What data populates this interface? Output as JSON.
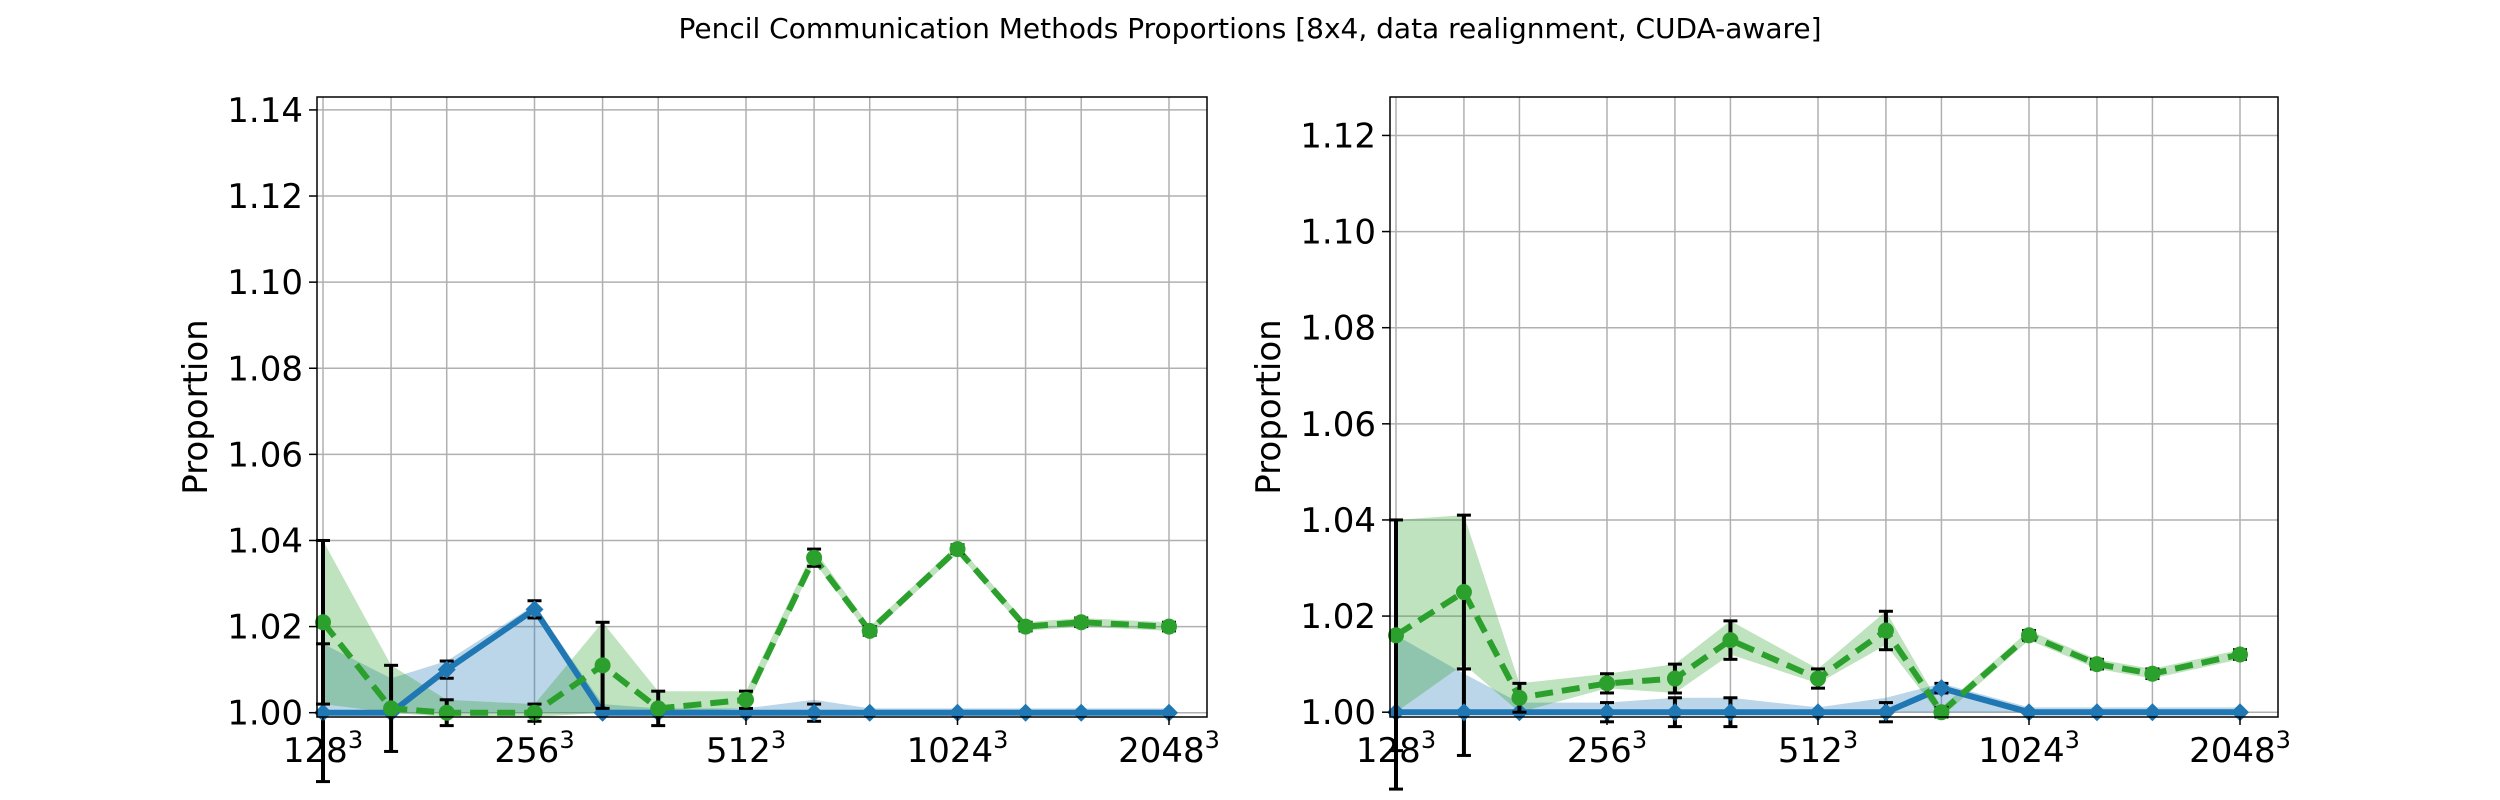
{
  "title": "Pencil Communication Methods Proportions [8x4, data realignment, CUDA-aware]",
  "colors": {
    "blue": "#1f77b4",
    "green": "#2ca02c",
    "grid": "#b0b0b0",
    "errbar": "#000000"
  },
  "chart_data": [
    {
      "type": "line",
      "ylabel": "Proportion",
      "grid": true,
      "ylim": [
        0.999,
        1.143
      ],
      "yticks": [
        "1.00",
        "1.02",
        "1.04",
        "1.06",
        "1.08",
        "1.10",
        "1.12",
        "1.14"
      ],
      "x": [
        128,
        160,
        192,
        256,
        320,
        384,
        512,
        640,
        768,
        1024,
        1280,
        1536,
        2048
      ],
      "xticks": [
        {
          "base": "128",
          "exp": "3"
        },
        {
          "base": "256",
          "exp": "3"
        },
        {
          "base": "512",
          "exp": "3"
        },
        {
          "base": "1024",
          "exp": "3"
        },
        {
          "base": "2048",
          "exp": "3"
        }
      ],
      "series": [
        {
          "color": "blue",
          "style": "solid",
          "marker": "diamond",
          "values": [
            1.0,
            1.0,
            1.01,
            1.024,
            1.0,
            1.0,
            1.0,
            1.0,
            1.0,
            1.0,
            1.0,
            1.0,
            1.0
          ],
          "lower": [
            1.0,
            1.0,
            1.0,
            1.0,
            1.0,
            1.0,
            1.0,
            1.0,
            1.0,
            1.0,
            1.0,
            1.0,
            1.0
          ],
          "upper": [
            1.016,
            1.008,
            1.012,
            1.025,
            1.002,
            1.001,
            1.001,
            1.003,
            1.001,
            1.001,
            1.001,
            1.001,
            1.001
          ],
          "err": [
            0.016,
            0.0,
            0.002,
            0.002,
            0.0,
            0.0,
            0.0,
            0.002,
            0.0,
            0.0,
            0.0,
            0.0,
            0.0
          ]
        },
        {
          "color": "green",
          "style": "dashed",
          "marker": "circle",
          "values": [
            1.021,
            1.001,
            1.0,
            1.0,
            1.011,
            1.001,
            1.003,
            1.036,
            1.019,
            1.038,
            1.02,
            1.021,
            1.02
          ],
          "lower": [
            1.002,
            1.0,
            0.999,
            0.999,
            1.0,
            1.0,
            1.001,
            1.035,
            1.018,
            1.037,
            1.019,
            1.02,
            1.019
          ],
          "upper": [
            1.04,
            1.011,
            1.003,
            1.002,
            1.021,
            1.005,
            1.005,
            1.038,
            1.02,
            1.039,
            1.021,
            1.022,
            1.021
          ],
          "err": [
            0.019,
            0.01,
            0.003,
            0.002,
            0.01,
            0.004,
            0.002,
            0.002,
            0.001,
            0.001,
            0.001,
            0.001,
            0.001
          ]
        }
      ]
    },
    {
      "type": "line",
      "ylabel": "Proportion",
      "grid": true,
      "ylim": [
        0.999,
        1.128
      ],
      "yticks": [
        "1.00",
        "1.02",
        "1.04",
        "1.06",
        "1.08",
        "1.10",
        "1.12"
      ],
      "x": [
        128,
        160,
        192,
        256,
        320,
        384,
        512,
        640,
        768,
        1024,
        1280,
        1536,
        2048
      ],
      "xticks": [
        {
          "base": "128",
          "exp": "3"
        },
        {
          "base": "256",
          "exp": "3"
        },
        {
          "base": "512",
          "exp": "3"
        },
        {
          "base": "1024",
          "exp": "3"
        },
        {
          "base": "2048",
          "exp": "3"
        }
      ],
      "series": [
        {
          "color": "blue",
          "style": "solid",
          "marker": "diamond",
          "values": [
            1.0,
            1.0,
            1.0,
            1.0,
            1.0,
            1.0,
            1.0,
            1.0,
            1.005,
            1.0,
            1.0,
            1.0,
            1.0
          ],
          "lower": [
            1.0,
            1.0,
            1.0,
            1.0,
            1.0,
            1.0,
            1.0,
            1.0,
            1.0,
            1.0,
            1.0,
            1.0,
            1.0
          ],
          "upper": [
            1.016,
            1.008,
            1.002,
            1.002,
            1.003,
            1.003,
            1.001,
            1.003,
            1.006,
            1.001,
            1.001,
            1.001,
            1.001
          ],
          "err": [
            0.016,
            0.009,
            0.0,
            0.002,
            0.003,
            0.003,
            0.0,
            0.002,
            0.001,
            0.0,
            0.0,
            0.0,
            0.0
          ]
        },
        {
          "color": "green",
          "style": "dashed",
          "marker": "circle",
          "values": [
            1.016,
            1.025,
            1.003,
            1.006,
            1.007,
            1.015,
            1.007,
            1.017,
            1.0,
            1.016,
            1.01,
            1.008,
            1.012
          ],
          "lower": [
            1.0,
            1.01,
            1.0,
            1.005,
            1.004,
            1.012,
            1.006,
            1.014,
            0.999,
            1.015,
            1.009,
            1.007,
            1.011
          ],
          "upper": [
            1.04,
            1.041,
            1.006,
            1.008,
            1.01,
            1.019,
            1.009,
            1.021,
            1.001,
            1.017,
            1.011,
            1.009,
            1.013
          ],
          "err": [
            0.024,
            0.016,
            0.003,
            0.002,
            0.003,
            0.004,
            0.002,
            0.004,
            0.001,
            0.001,
            0.001,
            0.001,
            0.001
          ]
        }
      ]
    }
  ]
}
